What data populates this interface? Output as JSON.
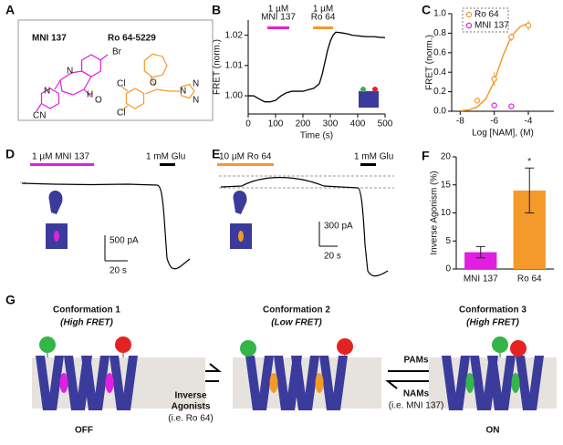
{
  "panel_labels": [
    "A",
    "B",
    "C",
    "D",
    "E",
    "F",
    "G"
  ],
  "structures": [
    {
      "name": "MNI 137",
      "color": "#e020e0",
      "atoms": [
        "Br",
        "N",
        "H",
        "O",
        "N",
        "CN"
      ]
    },
    {
      "name": "Ro 64-5229",
      "color": "#f39a2b",
      "atoms": [
        "O",
        "Cl",
        "Cl",
        "N",
        "N",
        "N"
      ]
    }
  ],
  "chart_data": [
    {
      "type": "line",
      "xlabel": "Time (s)",
      "ylabel": "FRET (norm.)",
      "color": "#000000",
      "xlim": [
        0,
        500
      ],
      "xticks": [
        0,
        100,
        200,
        300,
        400,
        500
      ],
      "ylim": [
        0.994,
        1.025
      ],
      "yticks": [
        {
          "value": 1.0,
          "label": "1.00"
        },
        {
          "value": 1.01,
          "label": "1.01"
        },
        {
          "value": 1.02,
          "label": "1.02"
        }
      ],
      "x": [
        0,
        20,
        40,
        60,
        80,
        100,
        120,
        140,
        160,
        180,
        200,
        220,
        240,
        260,
        270,
        280,
        290,
        300,
        310,
        320,
        340,
        360,
        380,
        400,
        420,
        440,
        460,
        480,
        500
      ],
      "values": [
        1.0,
        1.0,
        0.999,
        0.998,
        0.998,
        0.9985,
        1.0,
        1.001,
        1.0015,
        1.0015,
        1.0015,
        1.002,
        1.0025,
        1.004,
        1.007,
        1.011,
        1.015,
        1.018,
        1.02,
        1.021,
        1.0208,
        1.0205,
        1.02,
        1.0198,
        1.0196,
        1.0195,
        1.0195,
        1.0193,
        1.0192
      ],
      "annotations": [
        {
          "text": [
            "1 µM",
            "MNI 137"
          ],
          "start": 70,
          "end": 150,
          "color": "#e020e0"
        },
        {
          "text": [
            "1 µM",
            "Ro 64"
          ],
          "start": 237,
          "end": 310,
          "color": "#f39a2b"
        }
      ]
    },
    {
      "type": "scatter",
      "xlabel": "Log [NAM], (M)",
      "ylabel": "FRET (norm.)",
      "xlim": [
        -8.5,
        -2.5
      ],
      "xticks": [
        -8,
        -6,
        -4
      ],
      "ylim": [
        0,
        1
      ],
      "yticks": [
        {
          "value": 0,
          "label": "0.0"
        },
        0.2,
        0.4,
        0.6,
        0.8,
        {
          "value": 1,
          "label": "1.0"
        }
      ],
      "legend": "top-left",
      "series": [
        {
          "name": "Ro 64",
          "color": "#f39a2b",
          "x": [
            -7,
            -6,
            -5,
            -4
          ],
          "values": [
            0.11,
            0.33,
            0.76,
            0.88
          ],
          "errors": [
            0.02,
            0.07,
            0.04,
            0.05
          ]
        },
        {
          "name": "MNI 137",
          "color": "#e020e0",
          "x": [
            -6,
            -5
          ],
          "values": [
            0.06,
            0.05
          ],
          "errors": [
            0.02,
            0.03
          ]
        }
      ],
      "fit": {
        "color": "#f39a2b",
        "x": [
          -8,
          -7.5,
          -7,
          -6.5,
          -6,
          -5.5,
          -5,
          -4.5,
          -4
        ],
        "values": [
          0.005,
          0.014,
          0.044,
          0.126,
          0.307,
          0.564,
          0.767,
          0.865,
          0.902
        ]
      }
    },
    {
      "type": "bar",
      "ylabel": "Inverse Agonism (%)",
      "categories": [
        "MNI 137",
        "Ro 64"
      ],
      "values": [
        3,
        14
      ],
      "errors": [
        1,
        4
      ],
      "colors": [
        "#e020e0",
        "#f39a2b"
      ],
      "ylim": [
        0,
        20
      ],
      "yticks": [
        0,
        5,
        10,
        15,
        20
      ],
      "annotations": [
        {
          "text": "*",
          "category": 1
        }
      ]
    }
  ],
  "traces": [
    {
      "drug": "1 µM MNI 137",
      "drug_color": "#e020e0",
      "glu": "1 mM Glu",
      "scale_y": "500 pA",
      "scale_x": "20 s"
    },
    {
      "drug": "10 µM Ro 64",
      "drug_color": "#f39a2b",
      "glu": "1 mM Glu",
      "scale_y": "300 pA",
      "scale_x": "20 s"
    }
  ],
  "diagram": {
    "conformations": [
      {
        "title": "Conformation 1",
        "subtitle": "(High FRET)"
      },
      {
        "title": "Conformation 2",
        "subtitle": "(Low FRET)"
      },
      {
        "title": "Conformation 3",
        "subtitle": "(High FRET)"
      }
    ],
    "left_arrow": {
      "lines": [
        "Inverse",
        "Agonists"
      ],
      "note": "(i.e. Ro 64)"
    },
    "right_arrow": {
      "top": "PAMs",
      "bottom": "NAMs",
      "note": "(i.e. MNI 137)"
    },
    "states": [
      "OFF",
      "ON"
    ]
  }
}
